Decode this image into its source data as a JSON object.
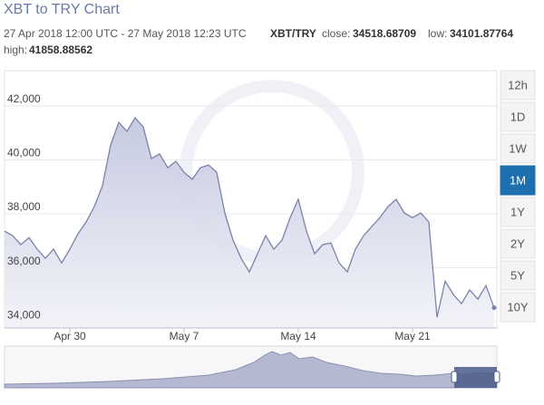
{
  "chart_data": {
    "type": "area",
    "title": "XBT to TRY Chart",
    "date_range": "27 Apr 2018 12:00 UTC - 27 May 2018 12:23 UTC",
    "pair": "XBT/TRY",
    "close_label": "close:",
    "close": 34518.68709,
    "low_label": "low:",
    "low": 34101.87764,
    "high_label": "high:",
    "high": 41858.88562,
    "color": "#7d82aa",
    "fill": "#c9cce2",
    "grid": true,
    "ylim": [
      33770,
      43240
    ],
    "yticks": [
      {
        "value": 34000,
        "label": "34,000"
      },
      {
        "value": 36000,
        "label": "36,000"
      },
      {
        "value": 38000,
        "label": "38,000"
      },
      {
        "value": 40000,
        "label": "40,000"
      },
      {
        "value": 42000,
        "label": "42,000"
      }
    ],
    "categories": [
      null,
      null,
      null,
      null,
      null,
      null,
      null,
      null,
      "Apr 30",
      null,
      null,
      null,
      null,
      null,
      null,
      null,
      null,
      null,
      null,
      null,
      null,
      null,
      "May 7",
      null,
      null,
      null,
      null,
      null,
      null,
      null,
      null,
      null,
      null,
      null,
      null,
      null,
      "May 14",
      null,
      null,
      null,
      null,
      null,
      null,
      null,
      null,
      null,
      null,
      null,
      null,
      null,
      "May 21",
      null,
      null,
      null,
      null,
      null,
      null,
      null,
      null,
      null,
      null
    ],
    "values": [
      37360,
      37190,
      36860,
      37120,
      36690,
      36350,
      36690,
      36180,
      36690,
      37260,
      37700,
      38270,
      39040,
      40550,
      41390,
      41060,
      41560,
      41220,
      40050,
      40220,
      39710,
      39950,
      39540,
      39280,
      39710,
      39810,
      39540,
      38030,
      37020,
      36350,
      35850,
      36520,
      37190,
      36690,
      37020,
      37860,
      38540,
      37360,
      36520,
      36860,
      36920,
      36180,
      35850,
      36690,
      37190,
      37530,
      37860,
      38270,
      38540,
      38030,
      37860,
      38030,
      37700,
      34170,
      35510,
      35010,
      34670,
      35180,
      34840,
      35340,
      34520
    ],
    "range_buttons": [
      "12h",
      "1D",
      "1W",
      "1M",
      "1Y",
      "2Y",
      "5Y",
      "10Y"
    ],
    "active_range": 3
  }
}
